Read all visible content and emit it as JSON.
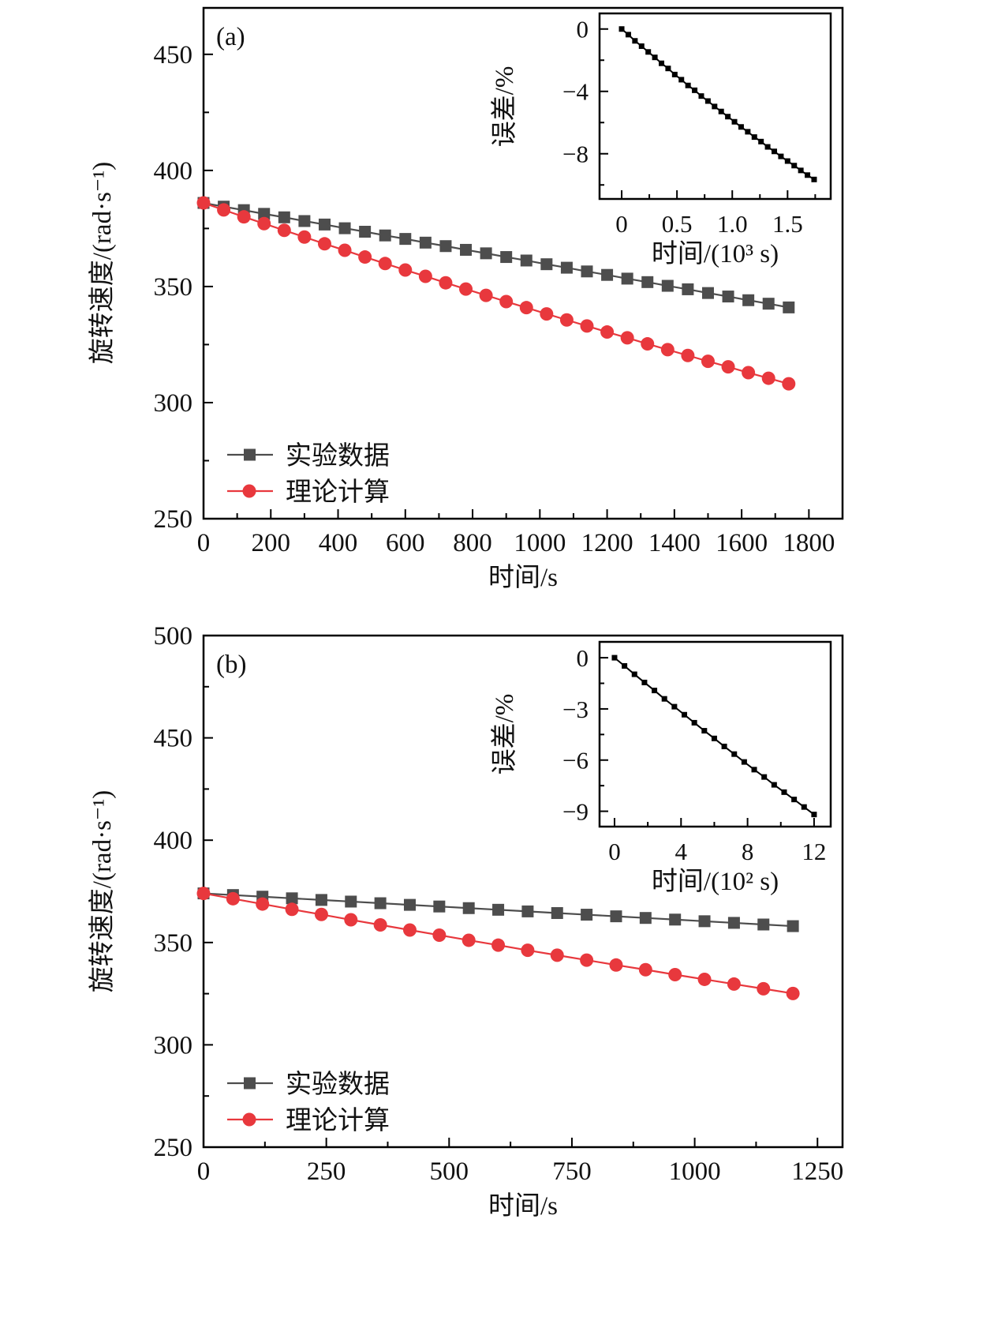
{
  "chart_data": [
    {
      "type": "line",
      "panel_label": "(a)",
      "xlabel": "时间/s",
      "ylabel": "旋转速度/(rad·s⁻¹)",
      "xlim": [
        0,
        1900
      ],
      "ylim": [
        250,
        470
      ],
      "xticks": [
        "0",
        "200",
        "400",
        "600",
        "800",
        "1000",
        "1200",
        "1400",
        "1600",
        "1800"
      ],
      "xtick_values": [
        0,
        200,
        400,
        600,
        800,
        1000,
        1200,
        1400,
        1600,
        1800
      ],
      "yticks": [
        "250",
        "300",
        "350",
        "400",
        "450"
      ],
      "ytick_values": [
        250,
        300,
        350,
        400,
        450
      ],
      "legend_position": "bottom-left",
      "colors": {
        "exp": "#4d4d4d",
        "theory": "#e8383d"
      },
      "x": [
        0,
        60,
        120,
        180,
        240,
        300,
        360,
        420,
        480,
        540,
        600,
        660,
        720,
        780,
        840,
        900,
        960,
        1020,
        1080,
        1140,
        1200,
        1260,
        1320,
        1380,
        1440,
        1500,
        1560,
        1620,
        1680,
        1740
      ],
      "series": [
        {
          "name": "实验数据",
          "marker": "square",
          "values": [
            386.0,
            384.4,
            382.9,
            381.3,
            379.8,
            378.2,
            376.7,
            375.1,
            373.6,
            372.0,
            370.5,
            368.9,
            367.4,
            365.8,
            364.3,
            362.7,
            361.2,
            359.6,
            358.1,
            356.5,
            355.0,
            353.4,
            351.9,
            350.3,
            348.8,
            347.2,
            345.7,
            344.1,
            342.6,
            341.0
          ]
        },
        {
          "name": "理论计算",
          "marker": "circle",
          "values": [
            386.0,
            383.0,
            380.0,
            377.1,
            374.2,
            371.3,
            368.4,
            365.6,
            362.7,
            359.9,
            357.1,
            354.4,
            351.6,
            348.9,
            346.2,
            343.5,
            340.9,
            338.2,
            335.6,
            333.0,
            330.4,
            327.9,
            325.3,
            322.8,
            320.3,
            317.8,
            315.4,
            312.9,
            310.5,
            308.1
          ]
        }
      ],
      "inset": {
        "type": "line",
        "xlabel": "时间/(10³ s)",
        "ylabel": "误差/%",
        "xlim": [
          -0.2,
          1.89
        ],
        "ylim": [
          -10.9,
          1.0
        ],
        "xticks": [
          "0",
          "0.5",
          "1.0",
          "1.5"
        ],
        "xtick_values": [
          0,
          0.5,
          1.0,
          1.5
        ],
        "yticks": [
          "0",
          "−4",
          "−8"
        ],
        "ytick_values": [
          0,
          -4,
          -8
        ],
        "x": [
          0,
          0.06,
          0.12,
          0.18,
          0.24,
          0.3,
          0.36,
          0.42,
          0.48,
          0.54,
          0.6,
          0.66,
          0.72,
          0.78,
          0.84,
          0.9,
          0.96,
          1.02,
          1.08,
          1.14,
          1.2,
          1.26,
          1.32,
          1.38,
          1.44,
          1.5,
          1.56,
          1.62,
          1.68,
          1.74
        ],
        "values": [
          0,
          -0.36,
          -0.76,
          -1.1,
          -1.47,
          -1.82,
          -2.2,
          -2.53,
          -2.92,
          -3.25,
          -3.62,
          -3.93,
          -4.3,
          -4.62,
          -4.97,
          -5.29,
          -5.62,
          -5.95,
          -6.28,
          -6.59,
          -6.93,
          -7.22,
          -7.56,
          -7.85,
          -8.17,
          -8.47,
          -8.76,
          -9.07,
          -9.37,
          -9.65
        ]
      }
    },
    {
      "type": "line",
      "panel_label": "(b)",
      "xlabel": "时间/s",
      "ylabel": "旋转速度/(rad·s⁻¹)",
      "xlim": [
        0,
        1301
      ],
      "ylim": [
        250,
        500
      ],
      "xticks": [
        "0",
        "250",
        "500",
        "750",
        "1000",
        "1250"
      ],
      "xtick_values": [
        0,
        250,
        500,
        750,
        1000,
        1250
      ],
      "yticks": [
        "250",
        "300",
        "350",
        "400",
        "450",
        "500"
      ],
      "ytick_values": [
        250,
        300,
        350,
        400,
        450,
        500
      ],
      "legend_position": "bottom-left",
      "colors": {
        "exp": "#4d4d4d",
        "theory": "#e8383d"
      },
      "x": [
        0,
        60,
        120,
        180,
        240,
        300,
        360,
        420,
        480,
        540,
        600,
        660,
        720,
        780,
        840,
        900,
        960,
        1020,
        1080,
        1140,
        1200
      ],
      "series": [
        {
          "name": "实验数据",
          "marker": "square",
          "values": [
            374.0,
            373.2,
            372.4,
            371.6,
            370.8,
            370.0,
            369.2,
            368.4,
            367.6,
            366.8,
            366.0,
            365.2,
            364.4,
            363.6,
            362.8,
            362.0,
            361.2,
            360.4,
            359.6,
            358.8,
            358.0
          ]
        },
        {
          "name": "理论计算",
          "marker": "circle",
          "values": [
            374.0,
            371.4,
            368.8,
            366.2,
            363.7,
            361.1,
            358.6,
            356.1,
            353.6,
            351.1,
            348.7,
            346.2,
            343.8,
            341.4,
            339.0,
            336.7,
            334.3,
            332.0,
            329.7,
            327.4,
            325.1
          ]
        }
      ],
      "inset": {
        "type": "line",
        "xlabel": "时间/(10² s)",
        "ylabel": "误差/%",
        "xlim": [
          -0.9,
          13.0
        ],
        "ylim": [
          -9.9,
          0.93
        ],
        "xticks": [
          "0",
          "4",
          "8",
          "12"
        ],
        "xtick_values": [
          0,
          4,
          8,
          12
        ],
        "yticks": [
          "0",
          "−3",
          "−6",
          "−9"
        ],
        "ytick_values": [
          0,
          -3,
          -6,
          -9
        ],
        "x": [
          0,
          0.6,
          1.2,
          1.8,
          2.4,
          3.0,
          3.6,
          4.2,
          4.8,
          5.4,
          6.0,
          6.6,
          7.2,
          7.8,
          8.4,
          9.0,
          9.6,
          10.2,
          10.8,
          11.4,
          12.0
        ],
        "values": [
          0,
          -0.48,
          -0.97,
          -1.45,
          -1.92,
          -2.41,
          -2.87,
          -3.34,
          -3.81,
          -4.28,
          -4.73,
          -5.2,
          -5.65,
          -6.11,
          -6.56,
          -6.99,
          -7.45,
          -7.88,
          -8.31,
          -8.75,
          -9.19
        ]
      }
    }
  ]
}
